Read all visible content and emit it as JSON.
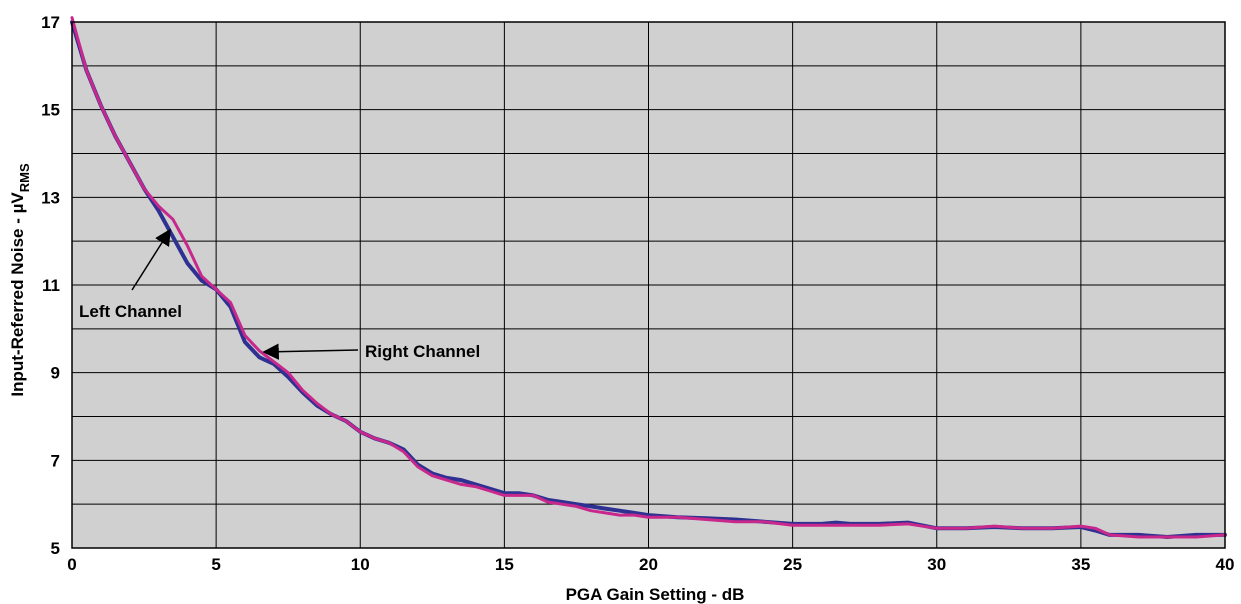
{
  "chart_data": {
    "type": "line",
    "xlabel": "PGA Gain Setting - dB",
    "ylabel_main": "Input-Referred Noise - µV",
    "ylabel_sub": "RMS",
    "xlim": [
      0,
      40
    ],
    "ylim": [
      5,
      17
    ],
    "x_ticks": [
      0,
      5,
      10,
      15,
      20,
      25,
      30,
      35,
      40
    ],
    "y_ticks": [
      5,
      7,
      9,
      11,
      13,
      15,
      17
    ],
    "y_minor_ticks": [
      6,
      8,
      10,
      12,
      14,
      16
    ],
    "grid": true,
    "plot_background": "#d0d0d0",
    "series": [
      {
        "name": "Left Channel",
        "color": "#2e3192",
        "x": [
          0,
          0.5,
          1,
          1.5,
          2,
          2.5,
          3,
          3.5,
          4,
          4.5,
          5,
          5.5,
          6,
          6.5,
          7,
          7.5,
          8,
          8.5,
          9,
          9.5,
          10,
          10.5,
          11,
          11.5,
          12,
          12.5,
          13,
          13.5,
          14,
          14.5,
          15,
          15.5,
          16,
          16.5,
          17,
          17.5,
          18,
          18.5,
          19,
          19.5,
          20,
          21,
          22,
          23,
          24,
          25,
          26,
          26.5,
          27,
          28,
          29,
          30,
          31,
          32,
          33,
          34,
          35,
          35.5,
          36,
          37,
          38,
          39,
          40
        ],
        "values": [
          17.0,
          15.9,
          15.1,
          14.4,
          13.8,
          13.2,
          12.7,
          12.1,
          11.5,
          11.1,
          10.9,
          10.5,
          9.7,
          9.35,
          9.2,
          8.9,
          8.55,
          8.25,
          8.05,
          7.9,
          7.65,
          7.5,
          7.4,
          7.25,
          6.9,
          6.7,
          6.6,
          6.55,
          6.45,
          6.35,
          6.25,
          6.25,
          6.2,
          6.1,
          6.05,
          6.0,
          5.95,
          5.9,
          5.85,
          5.8,
          5.75,
          5.7,
          5.68,
          5.65,
          5.6,
          5.55,
          5.55,
          5.58,
          5.55,
          5.55,
          5.58,
          5.45,
          5.45,
          5.48,
          5.45,
          5.45,
          5.48,
          5.4,
          5.3,
          5.3,
          5.25,
          5.3,
          5.3
        ]
      },
      {
        "name": "Right Channel",
        "color": "#c8288c",
        "x": [
          0,
          0.5,
          1,
          1.5,
          2,
          2.5,
          3,
          3.5,
          4,
          4.5,
          5,
          5.5,
          6,
          6.5,
          7,
          7.5,
          8,
          8.5,
          9,
          9.5,
          10,
          10.5,
          11,
          11.5,
          12,
          12.5,
          13,
          13.5,
          14,
          14.5,
          15,
          15.5,
          16,
          16.5,
          17,
          17.5,
          18,
          18.5,
          19,
          19.5,
          20,
          21,
          22,
          23,
          24,
          25,
          26,
          26.5,
          27,
          28,
          29,
          30,
          31,
          32,
          33,
          34,
          35,
          35.5,
          36,
          37,
          38,
          39,
          40
        ],
        "values": [
          17.1,
          15.9,
          15.1,
          14.4,
          13.8,
          13.2,
          12.8,
          12.5,
          11.9,
          11.2,
          10.9,
          10.6,
          9.85,
          9.5,
          9.25,
          9.0,
          8.6,
          8.3,
          8.05,
          7.9,
          7.65,
          7.5,
          7.4,
          7.2,
          6.85,
          6.65,
          6.55,
          6.45,
          6.4,
          6.3,
          6.2,
          6.2,
          6.2,
          6.05,
          6.0,
          5.95,
          5.85,
          5.8,
          5.75,
          5.75,
          5.7,
          5.7,
          5.65,
          5.6,
          5.6,
          5.52,
          5.52,
          5.52,
          5.52,
          5.52,
          5.55,
          5.45,
          5.45,
          5.5,
          5.45,
          5.45,
          5.5,
          5.45,
          5.3,
          5.25,
          5.25,
          5.25,
          5.3
        ]
      }
    ],
    "annotations": [
      {
        "text": "Left Channel",
        "target": [
          3.5,
          12.4
        ]
      },
      {
        "text": "Right Channel",
        "target": [
          6.7,
          9.4
        ]
      }
    ]
  }
}
